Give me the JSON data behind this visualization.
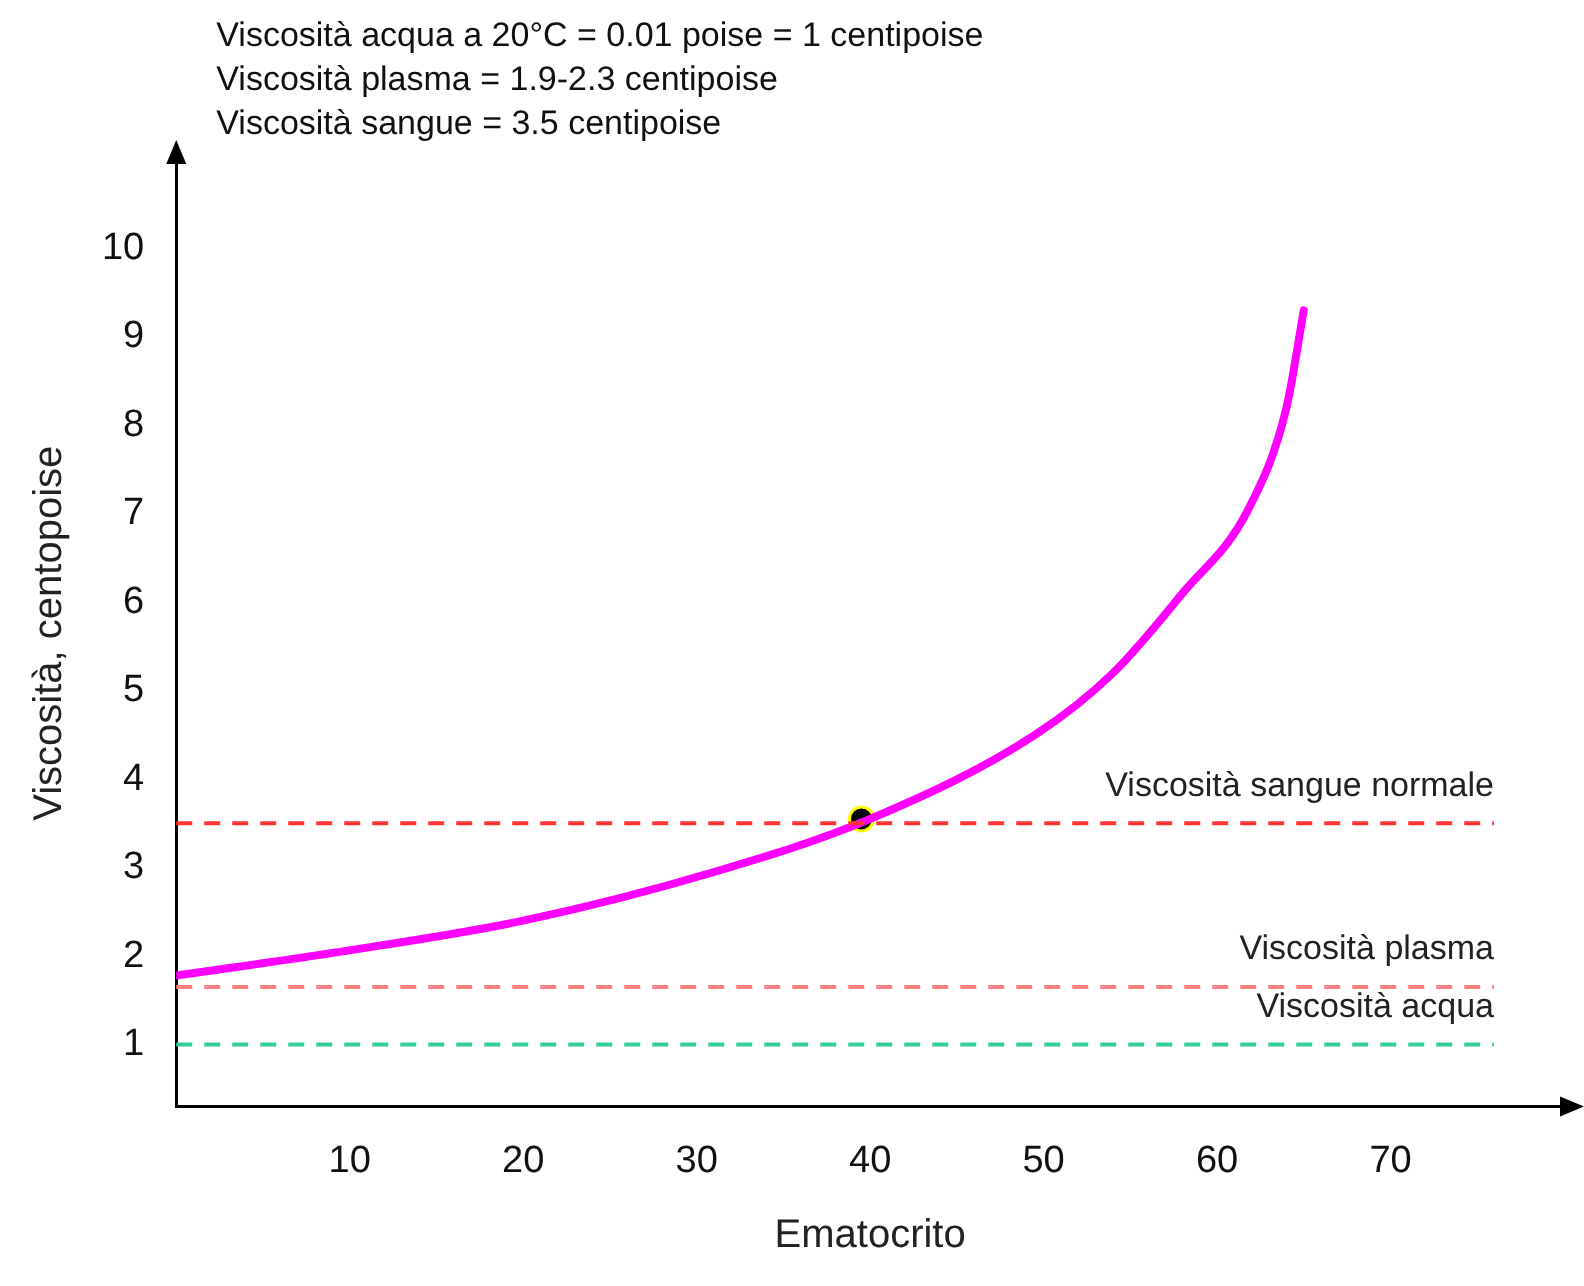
{
  "chart_data": {
    "type": "line",
    "xlabel": "Ematocrito",
    "ylabel": "Viscosità, centopoise",
    "annotations": [
      "Viscosità acqua a 20°C = 0.01 poise = 1 centipoise",
      "Viscosità plasma = 1.9-2.3 centipoise",
      "Viscosità sangue = 3.5 centipoise"
    ],
    "xlim": [
      0,
      80
    ],
    "xticks": [
      10,
      20,
      30,
      40,
      50,
      60,
      70
    ],
    "ylim": [
      0.3,
      11
    ],
    "yticks": [
      1,
      2,
      3,
      4,
      5,
      6,
      7,
      8,
      9,
      10
    ],
    "series": [
      {
        "color": "#ff00ff",
        "x": [
          0,
          9.5,
          20,
          31,
          40,
          49.5,
          54,
          58,
          61.8,
          64,
          65
        ],
        "values": [
          1.78,
          2.05,
          2.4,
          2.95,
          3.55,
          4.5,
          5.2,
          6.1,
          7.05,
          8.2,
          9.3
        ]
      },
      {
        "type": "scatter",
        "marker": "circle",
        "color": "#000000",
        "x": [
          39.5
        ],
        "values": [
          3.55
        ]
      }
    ],
    "ref_lines": [
      {
        "axis": "y",
        "value": 3.5,
        "label": "Viscosità sangue normale",
        "color": "#ff3333",
        "line_style": "dashed"
      },
      {
        "axis": "y",
        "value": 1.65,
        "label": "Viscosità plasma",
        "color": "#ff8080",
        "line_style": "dashed"
      },
      {
        "axis": "y",
        "value": 1,
        "label": "Viscosità acqua",
        "color": "#33cc99",
        "line_style": "dashed"
      }
    ],
    "grid": false,
    "legend": false,
    "marker": "none",
    "line_style": "solid"
  }
}
